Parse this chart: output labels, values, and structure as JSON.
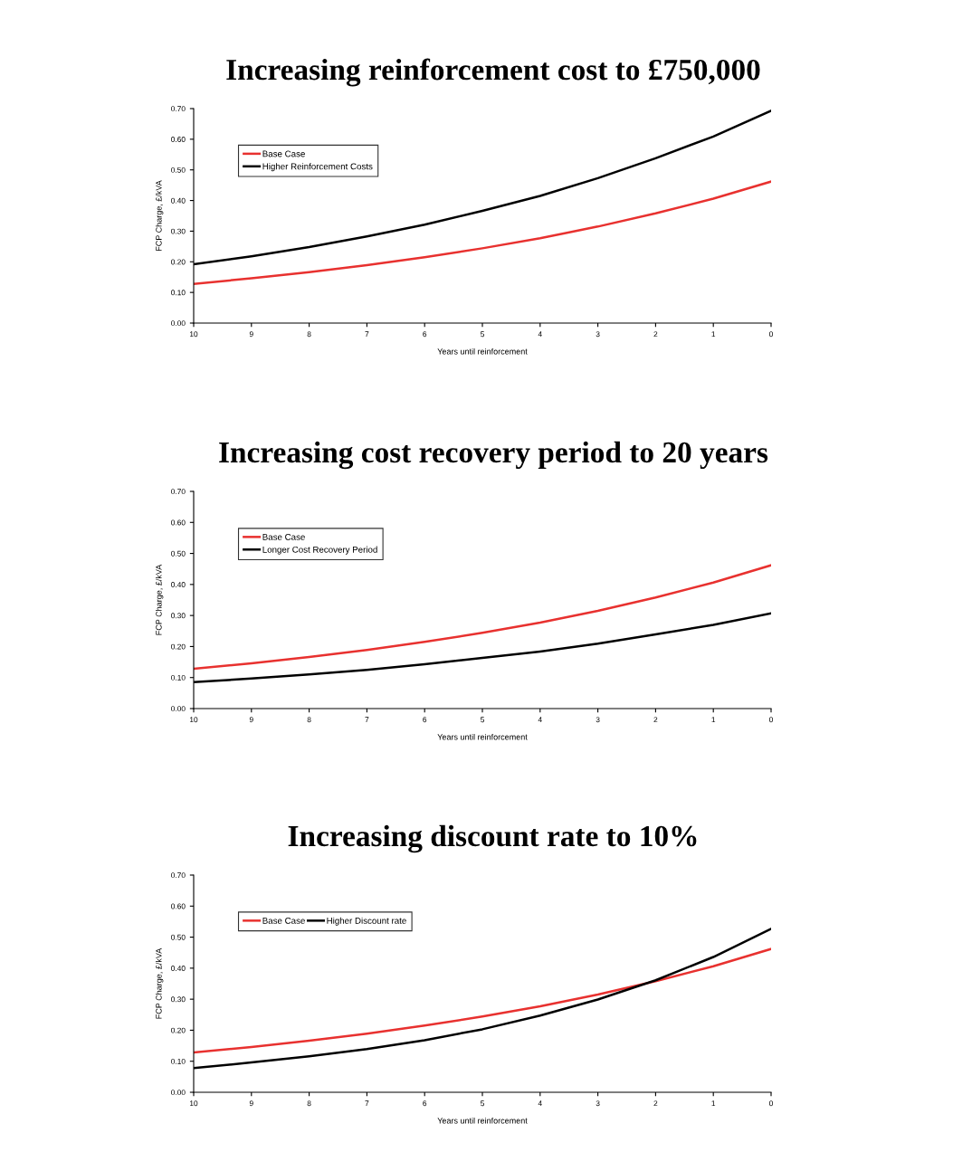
{
  "chart_data": [
    {
      "type": "line",
      "title": "Increasing reinforcement cost to £750,000",
      "xlabel": "Years until reinforcement",
      "ylabel": "FCP Charge, £/kVA",
      "x": [
        10,
        9,
        8,
        7,
        6,
        5,
        4,
        3,
        2,
        1,
        0
      ],
      "xlim": [
        10,
        0
      ],
      "xticks": [
        10,
        9,
        8,
        7,
        6,
        5,
        4,
        3,
        2,
        1,
        0
      ],
      "ylim": [
        0,
        0.7
      ],
      "yticks": [
        {
          "value": 0,
          "label": "0.00"
        },
        {
          "value": 0.1,
          "label": "0.10"
        },
        {
          "value": 0.2,
          "label": "0.20"
        },
        {
          "value": 0.3,
          "label": "0.30"
        },
        {
          "value": 0.4,
          "label": "0.40"
        },
        {
          "value": 0.5,
          "label": "0.50"
        },
        {
          "value": 0.6,
          "label": "0.60"
        },
        {
          "value": 0.7,
          "label": "0.70"
        }
      ],
      "grid": false,
      "legend": "top left",
      "marker": "none",
      "line_style": "solid",
      "series": [
        {
          "name": "Base Case",
          "color": "#e8312f",
          "values": [
            0.128,
            0.146,
            0.166,
            0.189,
            0.215,
            0.244,
            0.277,
            0.315,
            0.358,
            0.406,
            0.462
          ]
        },
        {
          "name": "Higher Reinforcement Costs",
          "color": "#000000",
          "values": [
            0.192,
            0.218,
            0.248,
            0.283,
            0.321,
            0.366,
            0.415,
            0.473,
            0.538,
            0.609,
            0.693
          ]
        }
      ]
    },
    {
      "type": "line",
      "title": "Increasing cost recovery period to 20 years",
      "xlabel": "Years until reinforcement",
      "ylabel": "FCP Charge, £/kVA",
      "x": [
        10,
        9,
        8,
        7,
        6,
        5,
        4,
        3,
        2,
        1,
        0
      ],
      "xlim": [
        10,
        0
      ],
      "xticks": [
        10,
        9,
        8,
        7,
        6,
        5,
        4,
        3,
        2,
        1,
        0
      ],
      "ylim": [
        0,
        0.7
      ],
      "yticks": [
        {
          "value": 0,
          "label": "0.00"
        },
        {
          "value": 0.1,
          "label": "0.10"
        },
        {
          "value": 0.2,
          "label": "0.20"
        },
        {
          "value": 0.3,
          "label": "0.30"
        },
        {
          "value": 0.4,
          "label": "0.40"
        },
        {
          "value": 0.5,
          "label": "0.50"
        },
        {
          "value": 0.6,
          "label": "0.60"
        },
        {
          "value": 0.7,
          "label": "0.70"
        }
      ],
      "grid": false,
      "legend": "top left",
      "marker": "none",
      "line_style": "solid",
      "series": [
        {
          "name": "Base Case",
          "color": "#e8312f",
          "values": [
            0.128,
            0.146,
            0.166,
            0.189,
            0.215,
            0.244,
            0.277,
            0.315,
            0.358,
            0.406,
            0.462
          ]
        },
        {
          "name": "Longer Cost Recovery Period",
          "color": "#000000",
          "values": [
            0.085,
            0.097,
            0.11,
            0.125,
            0.143,
            0.163,
            0.184,
            0.209,
            0.239,
            0.27,
            0.307
          ]
        }
      ]
    },
    {
      "type": "line",
      "title": "Increasing discount rate to 10%",
      "xlabel": "Years until reinforcement",
      "ylabel": "FCP Charge, £/kVA",
      "x": [
        10,
        9,
        8,
        7,
        6,
        5,
        4,
        3,
        2,
        1,
        0
      ],
      "xlim": [
        10,
        0
      ],
      "xticks": [
        10,
        9,
        8,
        7,
        6,
        5,
        4,
        3,
        2,
        1,
        0
      ],
      "ylim": [
        0,
        0.7
      ],
      "yticks": [
        {
          "value": 0,
          "label": "0.00"
        },
        {
          "value": 0.1,
          "label": "0.10"
        },
        {
          "value": 0.2,
          "label": "0.20"
        },
        {
          "value": 0.3,
          "label": "0.30"
        },
        {
          "value": 0.4,
          "label": "0.40"
        },
        {
          "value": 0.5,
          "label": "0.50"
        },
        {
          "value": 0.6,
          "label": "0.60"
        },
        {
          "value": 0.7,
          "label": "0.70"
        }
      ],
      "grid": false,
      "legend": "top left",
      "marker": "none",
      "line_style": "solid",
      "series": [
        {
          "name": "Base Case",
          "color": "#e8312f",
          "values": [
            0.128,
            0.146,
            0.166,
            0.189,
            0.215,
            0.244,
            0.277,
            0.315,
            0.358,
            0.406,
            0.462
          ]
        },
        {
          "name": "Higher Discount rate",
          "color": "#000000",
          "values": [
            0.078,
            0.096,
            0.116,
            0.139,
            0.168,
            0.203,
            0.247,
            0.299,
            0.361,
            0.436,
            0.527
          ]
        }
      ]
    }
  ]
}
